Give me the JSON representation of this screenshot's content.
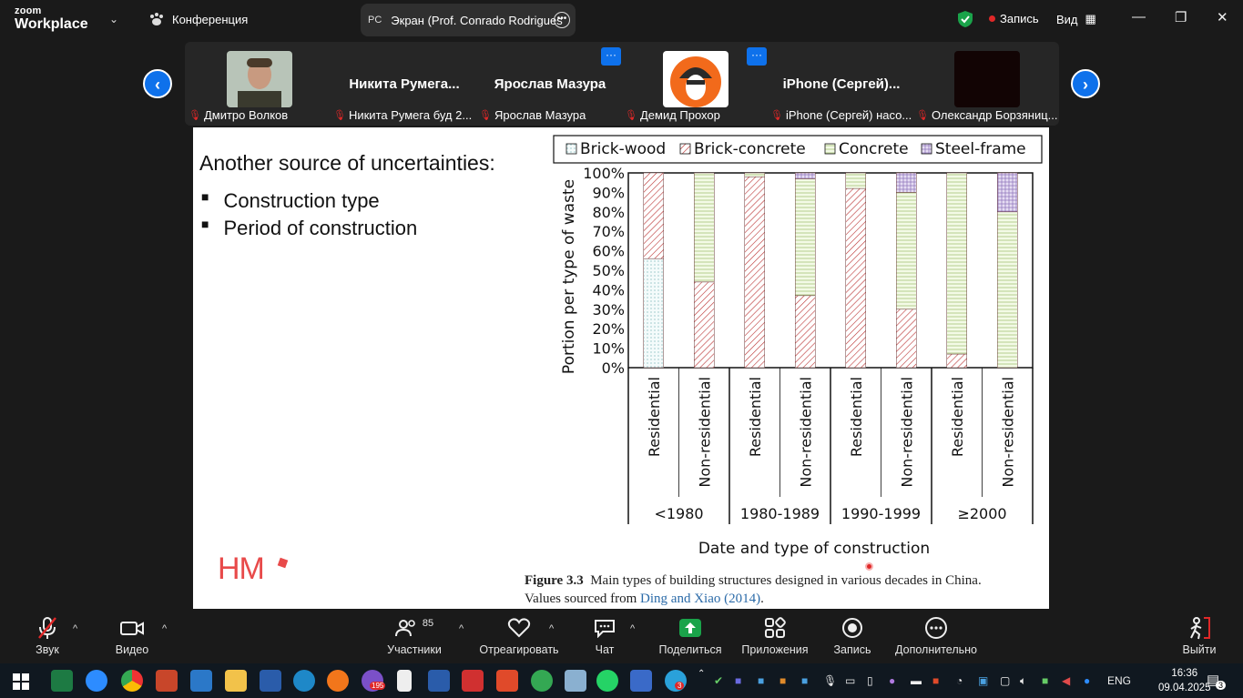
{
  "app": {
    "logo_line1": "zoom",
    "logo_line2": "Workplace",
    "meeting": "Конференция",
    "screen_initials": "PC",
    "screen_tab": "Экран (Prof. Conrado Rodrigues",
    "record": "Запись",
    "view": "Вид"
  },
  "participants": [
    {
      "label": "Дмитро Волков",
      "big_name": ""
    },
    {
      "label": "Никита Румега буд 2...",
      "big_name": "Никита  Румега..."
    },
    {
      "label": "Ярослав Мазура",
      "big_name": "Ярослав Мазура"
    },
    {
      "label": "Демид Прохор",
      "big_name": ""
    },
    {
      "label": "iPhone (Сергей) насо...",
      "big_name": "iPhone  (Сергей)..."
    },
    {
      "label": "Олександр Борзяниц...",
      "big_name": ""
    }
  ],
  "slide": {
    "heading": "Another source of uncertainties:",
    "bullets": [
      "Construction type",
      "Period of construction"
    ],
    "logo_text": "HM",
    "caption_label": "Figure 3.3",
    "caption_text": "Main types of building structures designed in various decades in China.",
    "caption_source_prefix": "Values sourced from",
    "caption_source_link": "Ding and Xiao (2014)",
    "caption_source_suffix": "."
  },
  "chart_data": {
    "type": "bar",
    "stacked": true,
    "xlabel": "Date and type of construction",
    "ylabel": "Portion per type of waste",
    "ylim": [
      0,
      100
    ],
    "yticks": [
      "0%",
      "10%",
      "20%",
      "30%",
      "40%",
      "50%",
      "60%",
      "70%",
      "80%",
      "90%",
      "100%"
    ],
    "categories": [
      "Residential",
      "Non-residential",
      "Residential",
      "Non-residential",
      "Residential",
      "Non-residential",
      "Residential",
      "Non-residential"
    ],
    "groups": [
      "<1980",
      "1980-1989",
      "1990-1999",
      "≥2000"
    ],
    "legend_position": "top",
    "series": [
      {
        "name": "Brick-wood",
        "values": [
          56,
          0,
          0,
          0,
          0,
          0,
          0,
          0
        ],
        "color": "#bfe0e0"
      },
      {
        "name": "Brick-concrete",
        "values": [
          44,
          44,
          98,
          37,
          92,
          30,
          7,
          0
        ],
        "color": "#e0a8a8"
      },
      {
        "name": "Concrete",
        "values": [
          0,
          56,
          2,
          60,
          8,
          60,
          93,
          80
        ],
        "color": "#d8ebb8"
      },
      {
        "name": "Steel-frame",
        "values": [
          0,
          0,
          0,
          3,
          0,
          10,
          0,
          20
        ],
        "color": "#c8b8e0"
      }
    ]
  },
  "toolbar": [
    {
      "label": "Звук",
      "icon": "mic-muted-icon"
    },
    {
      "label": "Видео",
      "icon": "video-icon"
    },
    {
      "label": "Участники",
      "icon": "participants-icon",
      "count": "85"
    },
    {
      "label": "Отреагировать",
      "icon": "heart-icon"
    },
    {
      "label": "Чат",
      "icon": "chat-icon"
    },
    {
      "label": "Поделиться",
      "icon": "share-icon"
    },
    {
      "label": "Приложения",
      "icon": "apps-icon"
    },
    {
      "label": "Запись",
      "icon": "record-icon"
    },
    {
      "label": "Дополнительно",
      "icon": "more-icon"
    },
    {
      "label": "Выйти",
      "icon": "leave-icon"
    }
  ],
  "taskbar": {
    "lang": "ENG",
    "time": "16:36",
    "date": "09.04.2025",
    "viber_badge": "195",
    "telegram_badge": "3",
    "notif_badge": "3"
  }
}
